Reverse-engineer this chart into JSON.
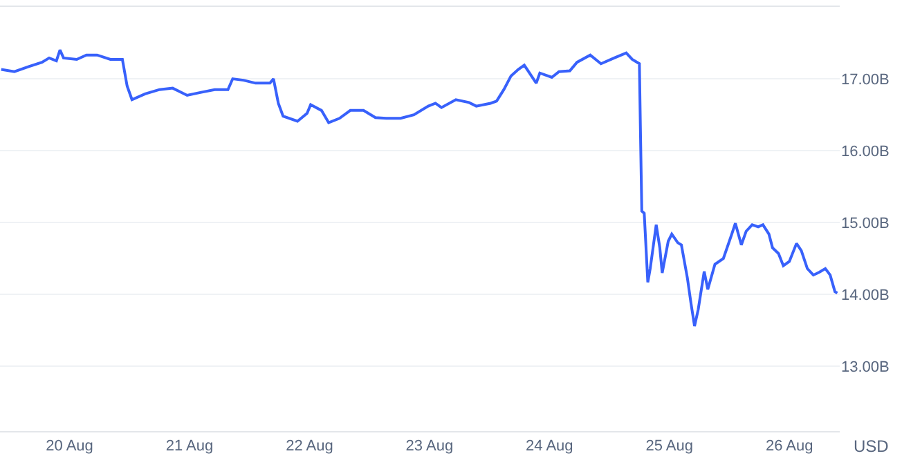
{
  "chart_data": {
    "type": "line",
    "ylabel": "USD",
    "x": [
      "--08-19T10:19",
      "--08-19T12:58",
      "--08-19T15:50",
      "--08-19T18:29",
      "--08-19T19:55",
      "--08-19T21:22",
      "--08-19T22:05",
      "--08-19T22:48",
      "--08-20T01:26",
      "--08-20T03:22",
      "--08-20T05:31",
      "--08-20T08:10",
      "--08-20T10:34",
      "--08-20T11:31",
      "--08-20T12:29",
      "--08-20T15:07",
      "--08-20T18:00",
      "--08-20T20:38",
      "--08-20T23:31",
      "--08-21T02:10",
      "--08-21T05:02",
      "--08-21T07:41",
      "--08-21T08:38",
      "--08-21T10:48",
      "--08-21T13:12",
      "--08-21T16:05",
      "--08-21T16:48",
      "--08-21T17:46",
      "--08-21T18:43",
      "--08-21T21:36",
      "--08-21T23:31",
      "--08-22T00:14",
      "--08-22T02:24",
      "--08-22T03:50",
      "--08-22T06:00",
      "--08-22T08:10",
      "--08-22T10:48",
      "--08-22T13:12",
      "--08-22T15:22",
      "--08-22T18:14",
      "--08-22T20:53",
      "--08-22T23:46",
      "--08-23T01:12",
      "--08-23T02:24",
      "--08-23T05:17",
      "--08-23T07:55",
      "--08-23T09:22",
      "--08-23T12:14",
      "--08-23T13:26",
      "--08-23T14:53",
      "--08-23T16:19",
      "--08-23T17:46",
      "--08-23T18:58",
      "--08-23T20:24",
      "--08-23T21:22",
      "--08-23T22:05",
      "--08-24T00:29",
      "--08-24T01:55",
      "--08-24T04:05",
      "--08-24T05:31",
      "--08-24T08:10",
      "--08-24T10:19",
      "--08-24T12:58",
      "--08-24T15:22",
      "--08-24T16:34",
      "--08-24T18:00",
      "--08-24T18:14",
      "--08-24T18:29",
      "--08-24T18:58",
      "--08-24T19:41",
      "--08-24T20:10",
      "--08-24T21:22",
      "--08-24T22:05",
      "--08-24T22:34",
      "--08-24T23:46",
      "--08-25T00:29",
      "--08-25T01:41",
      "--08-25T02:24",
      "--08-25T03:36",
      "--08-25T04:19",
      "--08-25T05:02",
      "--08-25T05:46",
      "--08-25T06:58",
      "--08-25T07:41",
      "--08-25T09:07",
      "--08-25T10:48",
      "--08-25T12:29",
      "--08-25T13:12",
      "--08-25T14:24",
      "--08-25T15:22",
      "--08-25T16:34",
      "--08-25T17:46",
      "--08-25T18:43",
      "--08-25T19:55",
      "--08-25T20:38",
      "--08-25T21:50",
      "--08-25T22:48",
      "--08-26T00:00",
      "--08-26T01:26",
      "--08-26T02:24",
      "--08-26T03:36",
      "--08-26T04:48",
      "--08-26T06:00",
      "--08-26T07:12",
      "--08-26T08:10",
      "--08-26T09:07",
      "--08-26T09:36"
    ],
    "series": [
      {
        "color": "#3861fb",
        "values": [
          17.13,
          17.1,
          17.17,
          17.23,
          17.29,
          17.25,
          17.4,
          17.29,
          17.27,
          17.33,
          17.33,
          17.27,
          17.27,
          16.9,
          16.71,
          16.79,
          16.85,
          16.87,
          16.77,
          16.81,
          16.85,
          16.85,
          17.0,
          16.98,
          16.94,
          16.94,
          17.0,
          16.66,
          16.48,
          16.41,
          16.52,
          16.64,
          16.56,
          16.39,
          16.45,
          16.56,
          16.56,
          16.46,
          16.45,
          16.45,
          16.5,
          16.62,
          16.66,
          16.6,
          16.71,
          16.67,
          16.62,
          16.66,
          16.69,
          16.85,
          17.04,
          17.13,
          17.19,
          17.04,
          16.94,
          17.08,
          17.02,
          17.1,
          17.11,
          17.23,
          17.33,
          17.21,
          17.29,
          17.36,
          17.27,
          17.21,
          16.18,
          15.16,
          15.13,
          14.17,
          14.36,
          14.97,
          14.65,
          14.3,
          14.74,
          14.84,
          14.72,
          14.69,
          14.23,
          13.88,
          13.56,
          13.79,
          14.32,
          14.07,
          14.42,
          14.5,
          14.84,
          14.99,
          14.69,
          14.88,
          14.97,
          14.94,
          14.97,
          14.84,
          14.65,
          14.57,
          14.4,
          14.46,
          14.71,
          14.61,
          14.36,
          14.27,
          14.31,
          14.36,
          14.27,
          14.04,
          14.02
        ]
      }
    ],
    "xlim": [
      "--08-19T10:05",
      "--08-26T10:05"
    ],
    "xticks": [
      {
        "value": "--08-20",
        "label": "20 Aug"
      },
      {
        "value": "--08-21",
        "label": "21 Aug"
      },
      {
        "value": "--08-22",
        "label": "22 Aug"
      },
      {
        "value": "--08-23",
        "label": "23 Aug"
      },
      {
        "value": "--08-24",
        "label": "24 Aug"
      },
      {
        "value": "--08-25",
        "label": "25 Aug"
      },
      {
        "value": "--08-26",
        "label": "26 Aug"
      }
    ],
    "ylim": [
      12.1,
      18.0
    ],
    "yticks": [
      {
        "value": 13,
        "label": "13.00B"
      },
      {
        "value": 14,
        "label": "14.00B"
      },
      {
        "value": 15,
        "label": "15.00B"
      },
      {
        "value": 16,
        "label": "16.00B"
      },
      {
        "value": 17,
        "label": "17.00B"
      }
    ],
    "grid": "y",
    "marker": "none",
    "line_style": "solid"
  }
}
